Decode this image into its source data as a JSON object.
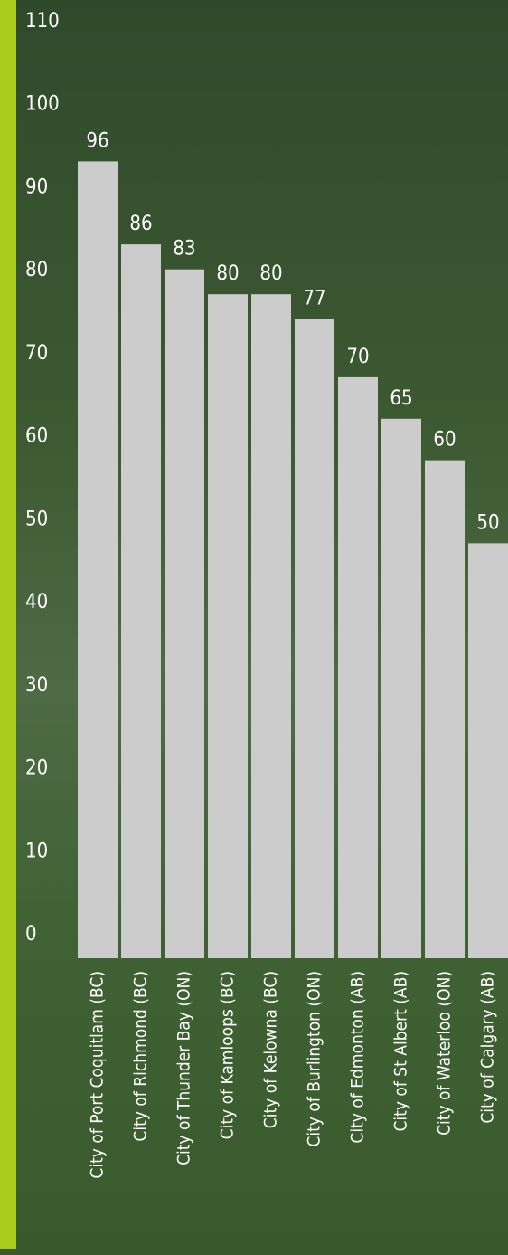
{
  "chart_data": {
    "type": "bar",
    "categories": [
      "City of Port Coquitlam (BC)",
      "City of Richmond (BC)",
      "City of Thunder Bay (ON)",
      "City of Kamloops (BC)",
      "City of Kelowna (BC)",
      "City of Burlington (ON)",
      "City of Edmonton (AB)",
      "City of St Albert (AB)",
      "City of Waterloo (ON)",
      "City of Calgary (AB)"
    ],
    "values": [
      96,
      86,
      83,
      80,
      80,
      77,
      70,
      65,
      60,
      50
    ],
    "color": "#cccccc",
    "ylim": [
      0,
      110
    ],
    "yticks": [
      0,
      10,
      20,
      30,
      40,
      50,
      60,
      70,
      80,
      90,
      100,
      110
    ],
    "grid": false
  }
}
